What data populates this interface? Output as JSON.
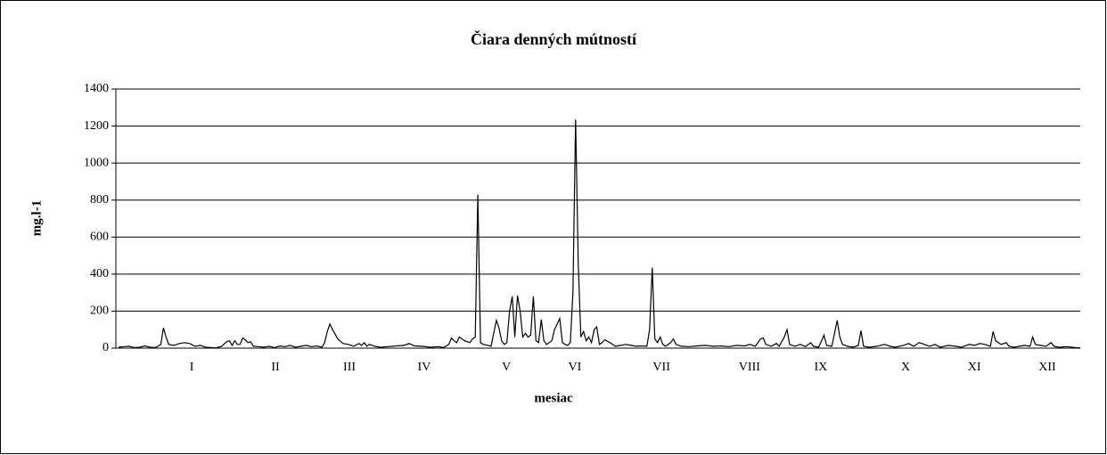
{
  "chart_data": {
    "type": "line",
    "title": "Čiara denných mútností",
    "xlabel": "mesiac",
    "ylabel": "mg.l-1",
    "x": [
      1,
      3,
      5,
      7,
      9,
      11,
      13,
      15,
      17,
      18,
      19,
      20,
      22,
      24,
      26,
      28,
      30,
      32,
      34,
      36,
      38,
      40,
      42,
      43,
      44,
      45,
      46,
      47,
      48,
      49,
      50,
      51,
      52,
      54,
      56,
      58,
      60,
      62,
      64,
      66,
      68,
      70,
      72,
      74,
      76,
      78,
      79,
      80,
      81,
      82,
      84,
      86,
      88,
      90,
      92,
      93,
      94,
      95,
      96,
      98,
      100,
      103,
      106,
      109,
      111,
      113,
      116,
      119,
      122,
      124,
      126,
      127,
      128,
      129,
      130,
      131,
      132,
      134,
      135,
      136,
      137,
      138,
      139,
      141,
      142,
      144,
      145,
      146,
      147,
      148,
      149,
      150,
      151,
      152,
      153,
      154,
      155,
      156,
      157,
      158,
      159,
      160,
      161,
      162,
      163,
      164,
      165,
      166,
      167,
      168,
      169,
      170,
      171,
      172,
      173,
      174,
      175,
      176,
      177,
      178,
      179,
      180,
      181,
      182,
      183,
      184,
      185,
      187,
      189,
      191,
      193,
      195,
      197,
      199,
      201,
      202,
      203,
      204,
      205,
      206,
      207,
      208,
      210,
      211,
      212,
      214,
      217,
      220,
      223,
      226,
      229,
      232,
      235,
      238,
      240,
      242,
      244,
      245,
      246,
      248,
      250,
      251,
      253,
      254,
      255,
      257,
      259,
      261,
      263,
      264,
      266,
      268,
      269,
      271,
      273,
      274,
      275,
      277,
      279,
      281,
      282,
      283,
      285,
      288,
      291,
      293,
      295,
      298,
      300,
      302,
      304,
      306,
      308,
      310,
      312,
      315,
      318,
      320,
      323,
      325,
      327,
      329,
      331,
      332,
      333,
      335,
      337,
      338,
      340,
      342,
      344,
      346,
      347,
      348,
      350,
      352,
      354,
      355,
      357,
      360,
      363,
      365
    ],
    "series": [
      {
        "name": "mg.l-1",
        "color": "#000000",
        "values": [
          5,
          8,
          10,
          3,
          5,
          12,
          5,
          3,
          20,
          110,
          60,
          20,
          15,
          25,
          30,
          25,
          10,
          15,
          5,
          3,
          2,
          10,
          35,
          40,
          15,
          40,
          20,
          20,
          55,
          45,
          30,
          35,
          10,
          8,
          5,
          10,
          3,
          12,
          8,
          15,
          5,
          10,
          15,
          8,
          12,
          5,
          30,
          90,
          130,
          100,
          50,
          25,
          20,
          10,
          25,
          15,
          30,
          10,
          20,
          10,
          5,
          8,
          12,
          15,
          25,
          12,
          10,
          5,
          8,
          3,
          20,
          55,
          40,
          30,
          60,
          50,
          40,
          30,
          50,
          60,
          830,
          30,
          20,
          15,
          10,
          150,
          110,
          40,
          20,
          30,
          200,
          280,
          60,
          285,
          200,
          60,
          80,
          60,
          70,
          280,
          40,
          30,
          155,
          40,
          20,
          30,
          40,
          100,
          130,
          160,
          30,
          20,
          15,
          30,
          300,
          1235,
          450,
          60,
          90,
          40,
          60,
          30,
          100,
          115,
          20,
          30,
          45,
          30,
          10,
          15,
          20,
          15,
          10,
          12,
          10,
          100,
          435,
          50,
          30,
          60,
          20,
          10,
          30,
          50,
          20,
          10,
          8,
          12,
          15,
          10,
          12,
          8,
          15,
          12,
          20,
          10,
          50,
          55,
          20,
          10,
          25,
          10,
          60,
          100,
          20,
          10,
          20,
          8,
          30,
          10,
          5,
          70,
          15,
          10,
          150,
          60,
          20,
          10,
          5,
          15,
          95,
          10,
          5,
          10,
          20,
          10,
          5,
          15,
          25,
          10,
          30,
          20,
          10,
          20,
          5,
          15,
          10,
          5,
          20,
          15,
          25,
          20,
          10,
          90,
          40,
          20,
          30,
          10,
          5,
          10,
          15,
          10,
          60,
          20,
          15,
          10,
          30,
          10,
          5,
          8,
          3,
          2
        ]
      }
    ],
    "xlim": [
      0,
      365
    ],
    "xticks": [
      {
        "value": 28.7,
        "label": "I"
      },
      {
        "value": 60.4,
        "label": "II"
      },
      {
        "value": 88.4,
        "label": "III"
      },
      {
        "value": 116.7,
        "label": "IV"
      },
      {
        "value": 147.8,
        "label": "V"
      },
      {
        "value": 173.7,
        "label": "VI"
      },
      {
        "value": 206.5,
        "label": "VII"
      },
      {
        "value": 239.8,
        "label": "VIII"
      },
      {
        "value": 266.8,
        "label": "IX"
      },
      {
        "value": 298.9,
        "label": "X"
      },
      {
        "value": 324.9,
        "label": "XI"
      },
      {
        "value": 352.5,
        "label": "XII"
      }
    ],
    "ylim": [
      0,
      1400
    ],
    "yticks": [
      0,
      200,
      400,
      600,
      800,
      1000,
      1200,
      1400
    ],
    "grid": true
  }
}
